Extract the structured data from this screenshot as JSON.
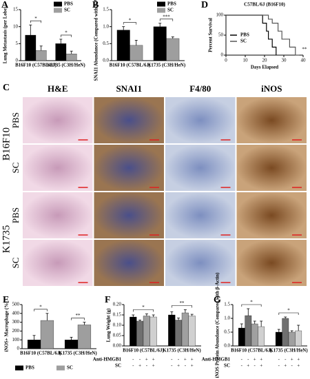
{
  "image_grid": {
    "label": "C",
    "columns": [
      "H&E",
      "SNAI1",
      "F4/80",
      "iNOS"
    ],
    "groups": [
      {
        "name": "B16F10",
        "rows": [
          "PBS",
          "SC"
        ]
      },
      {
        "name": "K1735",
        "rows": [
          "PBS",
          "SC"
        ]
      }
    ]
  },
  "chart_data": [
    {
      "label": "A",
      "type": "bar",
      "ylabel": "Lung Metastasis (per Lobe)",
      "categories": [
        "B16F10 (C57BL/6J)",
        "K1735 (C3H/HeN)"
      ],
      "series": [
        {
          "name": "PBS",
          "color": "#000000",
          "values": [
            7.5,
            5.0
          ],
          "errors": [
            3,
            1.3
          ]
        },
        {
          "name": "SC",
          "color": "#9e9e9e",
          "values": [
            3.0,
            2.0
          ],
          "errors": [
            1.3,
            0.8
          ]
        }
      ],
      "significance": [
        "*",
        "*"
      ],
      "ylim": [
        0,
        15
      ],
      "yticks": [
        0,
        5,
        10,
        15
      ],
      "legend": "upper right"
    },
    {
      "label": "B",
      "type": "bar",
      "ylabel": "SNAI1 Abundance (Compared with β-Actin)",
      "categories": [
        "B16F10 (C57BL/6J)",
        "K1735 (C3H/HeN)"
      ],
      "series": [
        {
          "name": "PBS",
          "color": "#000000",
          "values": [
            0.9,
            1.0
          ],
          "errors": [
            0.1,
            0.1
          ]
        },
        {
          "name": "SC",
          "color": "#9e9e9e",
          "values": [
            0.45,
            0.65
          ],
          "errors": [
            0.15,
            0.05
          ]
        }
      ],
      "significance": [
        "*",
        "***"
      ],
      "ylim": [
        0,
        1.5
      ],
      "yticks": [
        {
          "value": 0,
          "label": "0.0"
        },
        0.5,
        {
          "value": 1,
          "label": "1.0"
        },
        1.5
      ],
      "legend": "upper right"
    },
    {
      "label": "D",
      "type": "line",
      "title": "C57BL/6J (B16F10)",
      "xlabel": "Days Elapsed",
      "ylabel": "Percent Survival",
      "series": [
        {
          "name": "PBS",
          "color": "#000000",
          "x": [
            0,
            19,
            19,
            21,
            21,
            22,
            22,
            24,
            24,
            26,
            26
          ],
          "values": [
            100,
            100,
            80,
            80,
            60,
            60,
            40,
            40,
            20,
            20,
            0
          ]
        },
        {
          "name": "SC",
          "color": "#555555",
          "x": [
            0,
            22,
            22,
            24,
            24,
            27,
            27,
            29,
            29,
            33,
            33,
            36,
            36,
            38
          ],
          "values": [
            100,
            100,
            90,
            90,
            80,
            80,
            60,
            60,
            40,
            40,
            20,
            20,
            0,
            0
          ]
        }
      ],
      "significance": "**",
      "xlim": [
        0,
        40
      ],
      "xticks": [
        0,
        10,
        20,
        30,
        40
      ],
      "ylim": [
        0,
        100
      ],
      "yticks": [
        0,
        50,
        100
      ],
      "legend": "center left"
    },
    {
      "label": "E",
      "type": "bar",
      "ylabel": "iNOS+ Macrophage (%)",
      "categories": [
        "B16F10 (C57BL/6J)",
        "K1735 (C3H/HeN)"
      ],
      "series": [
        {
          "name": "PBS",
          "color": "#000000",
          "values": [
            100,
            100
          ],
          "errors": [
            50,
            30
          ]
        },
        {
          "name": "SC",
          "color": "#9e9e9e",
          "values": [
            320,
            270
          ],
          "errors": [
            80,
            30
          ]
        }
      ],
      "significance": [
        "*",
        "**"
      ],
      "ylim": [
        0,
        500
      ],
      "yticks": [
        0,
        100,
        200,
        300,
        400,
        500
      ],
      "legend": "bottom"
    },
    {
      "label": "F",
      "type": "bar",
      "ylabel": "Lung Weight (g)",
      "categories": [
        "B16F10 (C57BL/6J)",
        "K1735 (C3H/HeN)"
      ],
      "series": [
        {
          "color": "#000000",
          "values": [
            0.14,
            0.15
          ],
          "errors": [
            0.01,
            0.015
          ]
        },
        {
          "color": "#707070",
          "values": [
            0.12,
            0.125
          ],
          "errors": [
            0.005,
            0.01
          ]
        },
        {
          "color": "#a0a0a0",
          "values": [
            0.145,
            0.16
          ],
          "errors": [
            0.01,
            0.015
          ]
        },
        {
          "color": "#d0d0d0",
          "values": [
            0.14,
            0.145
          ],
          "errors": [
            0.01,
            0.008
          ]
        }
      ],
      "significance": [
        "*",
        "**"
      ],
      "ylim": [
        0,
        0.2
      ],
      "yticks": [
        {
          "value": 0,
          "label": "0.00"
        },
        0.05,
        {
          "value": 0.1,
          "label": "0.10"
        },
        0.15,
        {
          "value": 0.2,
          "label": "0.20"
        }
      ],
      "conditions": [
        {
          "label": "Anti-HMGB1",
          "marks": [
            "-",
            "-",
            "+",
            "+"
          ]
        },
        {
          "label": "SC",
          "marks": [
            "-",
            "+",
            "-",
            "+"
          ]
        }
      ]
    },
    {
      "label": "G",
      "type": "bar",
      "ylabel": "iNOS Protein Abundance (Compared with β-Actin)",
      "categories": [
        "B16F10 (C57BL/6J)",
        "K1735 (C3H/HeN)"
      ],
      "series": [
        {
          "color": "#000000",
          "values": [
            0.65,
            0.5
          ],
          "errors": [
            0.15,
            0.1
          ]
        },
        {
          "color": "#707070",
          "values": [
            1.1,
            1.0
          ],
          "errors": [
            0.25,
            0.05
          ]
        },
        {
          "color": "#a0a0a0",
          "values": [
            0.8,
            0.5
          ],
          "errors": [
            0.1,
            0.05
          ]
        },
        {
          "color": "#d0d0d0",
          "values": [
            0.7,
            0.55
          ],
          "errors": [
            0.2,
            0.2
          ]
        }
      ],
      "significance": [
        "*",
        "*"
      ],
      "ylim": [
        0,
        1.5
      ],
      "yticks": [
        {
          "value": 0,
          "label": "0.0"
        },
        0.5,
        {
          "value": 1,
          "label": "1.0"
        },
        1.5
      ],
      "conditions": [
        {
          "label": "Anti-HMGB1",
          "marks": [
            "-",
            "-",
            "+",
            "+"
          ]
        },
        {
          "label": "SC",
          "marks": [
            "-",
            "+",
            "-",
            "+"
          ]
        }
      ]
    }
  ]
}
